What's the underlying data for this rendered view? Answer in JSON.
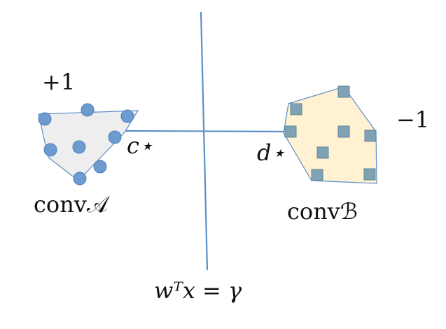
{
  "labels": {
    "plus_one": "+1",
    "minus_one": "−1",
    "conv_a": "conv𝒜",
    "conv_b": "convℬ",
    "c_star": "c⋆",
    "d_star": "d⋆",
    "hyperplane": "wᵀx = γ"
  },
  "colors": {
    "line": "#5b8fc9",
    "poly_a_fill": "#eeeeee",
    "poly_b_fill": "#fff1d1",
    "dot_a": "#6d9bd0",
    "square_b": "#7fa2b4"
  }
}
